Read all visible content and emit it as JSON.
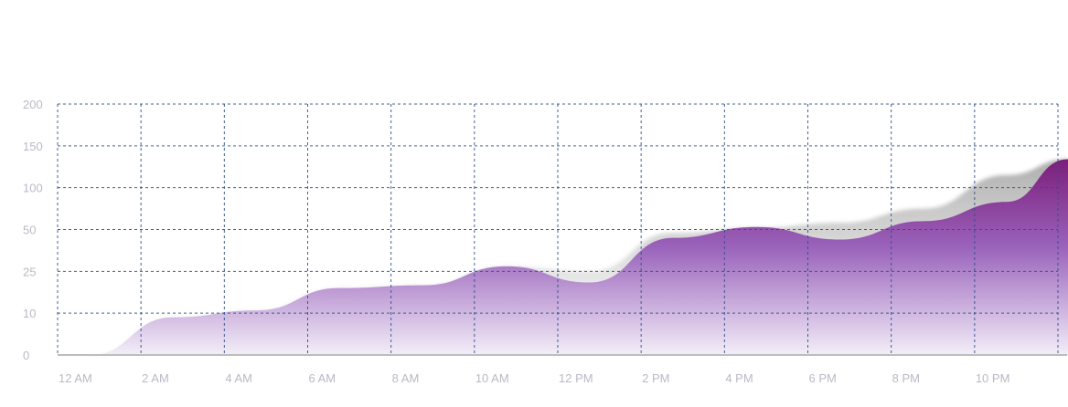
{
  "chart_data": {
    "type": "area",
    "title": "",
    "xlabel": "",
    "ylabel": "",
    "categories": [
      "12 AM",
      "2 AM",
      "4 AM",
      "6 AM",
      "8 AM",
      "10 AM",
      "12 PM",
      "2 PM",
      "4 PM",
      "6 PM",
      "8 PM",
      "10 PM"
    ],
    "y_tick_labels": [
      "0",
      "10",
      "25",
      "50",
      "100",
      "150",
      "200"
    ],
    "y_scale": "categorical-ticks (0,10,25,50,100,150,200 equally spaced)",
    "grid": true,
    "grid_style": "dashed",
    "legend": "none",
    "series": [
      {
        "values": [
          0,
          9,
          11,
          19,
          20,
          28,
          21,
          45,
          53,
          44,
          60,
          83
        ],
        "value_at_end": 134
      }
    ],
    "shadow_series": [
      {
        "values": [
          0,
          9,
          11,
          19,
          20,
          28,
          25,
          48,
          52,
          58,
          75,
          115
        ],
        "value_at_end": 134
      }
    ],
    "colors": {
      "area_top": "#7b1e7a",
      "area_bottom": "#efe8f6",
      "shadow": "#9a9a9a",
      "grid": "#2f4f8c",
      "tick_text": "#b9b9c6",
      "baseline": "#bdbdbd"
    }
  }
}
